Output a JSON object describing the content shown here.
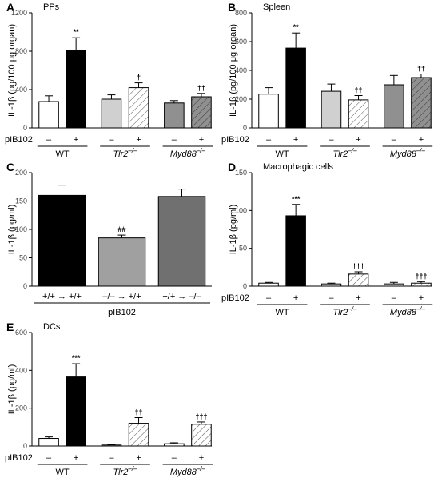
{
  "chart_data": [
    {
      "id": "A",
      "type": "bar",
      "panel_label": "A",
      "title": "PPs",
      "ylabel": "IL-1β (pg/100 μg organ)",
      "ylim": [
        0,
        1200
      ],
      "yticks": [
        0,
        400,
        800,
        1200
      ],
      "row_label": "pIB102",
      "bar_conditions": [
        "–",
        "+",
        "–",
        "+",
        "–",
        "+"
      ],
      "groups": [
        {
          "label": "WT",
          "italic": false
        },
        {
          "label": "Tlr2",
          "sup": "–/–",
          "italic": true
        },
        {
          "label": "Myd88",
          "sup": "–/–",
          "italic": true
        }
      ],
      "values": [
        275,
        810,
        300,
        420,
        260,
        325
      ],
      "errors": [
        60,
        130,
        45,
        50,
        25,
        35
      ],
      "significance": [
        "",
        "**",
        "",
        "†",
        "",
        "††"
      ],
      "colors": [
        "#ffffff",
        "#000000",
        "#d0d0d0",
        "hatch-light",
        "#909090",
        "hatch-dark"
      ]
    },
    {
      "id": "B",
      "type": "bar",
      "panel_label": "B",
      "title": "Spleen",
      "ylabel": "IL-1β (pg/100 μg organ)",
      "ylim": [
        0,
        800
      ],
      "yticks": [
        0,
        200,
        400,
        600,
        800
      ],
      "row_label": "pIB102",
      "bar_conditions": [
        "–",
        "+",
        "–",
        "+",
        "–",
        "+"
      ],
      "groups": [
        {
          "label": "WT",
          "italic": false
        },
        {
          "label": "Tlr2",
          "sup": "–/–",
          "italic": true
        },
        {
          "label": "Myd88",
          "sup": "–/–",
          "italic": true
        }
      ],
      "values": [
        235,
        555,
        255,
        195,
        300,
        350
      ],
      "errors": [
        45,
        105,
        50,
        30,
        65,
        25
      ],
      "significance": [
        "",
        "**",
        "",
        "††",
        "",
        "††"
      ],
      "colors": [
        "#ffffff",
        "#000000",
        "#d0d0d0",
        "hatch-light",
        "#909090",
        "hatch-dark"
      ]
    },
    {
      "id": "C",
      "type": "bar",
      "panel_label": "C",
      "title": "",
      "ylabel": "IL-1β (pg/ml)",
      "ylim": [
        0,
        200
      ],
      "yticks": [
        0,
        50,
        100,
        150,
        200
      ],
      "categories": [
        "+/+ → +/+",
        "–/– → +/+",
        "+/+ → –/–"
      ],
      "xlabel": "pIB102",
      "values": [
        160,
        85,
        158
      ],
      "errors": [
        18,
        5,
        13
      ],
      "significance": [
        "",
        "##",
        ""
      ],
      "colors": [
        "#000000",
        "#a0a0a0",
        "#707070"
      ]
    },
    {
      "id": "D",
      "type": "bar",
      "panel_label": "D",
      "title": "Macrophagic cells",
      "ylabel": "IL-1β (pg/ml)",
      "ylim": [
        0,
        150
      ],
      "yticks": [
        0,
        50,
        100,
        150
      ],
      "row_label": "pIB102",
      "bar_conditions": [
        "–",
        "+",
        "–",
        "+",
        "–",
        "+"
      ],
      "groups": [
        {
          "label": "WT",
          "italic": false
        },
        {
          "label": "Tlr2",
          "sup": "–/–",
          "italic": true
        },
        {
          "label": "Myd88",
          "sup": "–/–",
          "italic": true
        }
      ],
      "values": [
        4,
        93,
        3,
        16,
        3,
        4
      ],
      "errors": [
        1,
        15,
        1,
        3,
        2,
        2
      ],
      "significance": [
        "",
        "***",
        "",
        "†††",
        "",
        "†††"
      ],
      "colors": [
        "#ffffff",
        "#000000",
        "#ffffff",
        "hatch-light",
        "#ffffff",
        "hatch-light"
      ]
    },
    {
      "id": "E",
      "type": "bar",
      "panel_label": "E",
      "title": "DCs",
      "ylabel": "IL-1β (pg/ml)",
      "ylim": [
        0,
        600
      ],
      "yticks": [
        0,
        200,
        400,
        600
      ],
      "row_label": "pIB102",
      "bar_conditions": [
        "–",
        "+",
        "–",
        "+",
        "–",
        "+"
      ],
      "groups": [
        {
          "label": "WT",
          "italic": false
        },
        {
          "label": "Tlr2",
          "sup": "–/–",
          "italic": true
        },
        {
          "label": "Myd88",
          "sup": "–/–",
          "italic": true
        }
      ],
      "values": [
        40,
        365,
        5,
        120,
        12,
        115
      ],
      "errors": [
        8,
        70,
        3,
        30,
        5,
        12
      ],
      "significance": [
        "",
        "***",
        "",
        "††",
        "",
        "†††"
      ],
      "colors": [
        "#ffffff",
        "#000000",
        "#ffffff",
        "hatch-light",
        "#ffffff",
        "hatch-light"
      ]
    }
  ]
}
